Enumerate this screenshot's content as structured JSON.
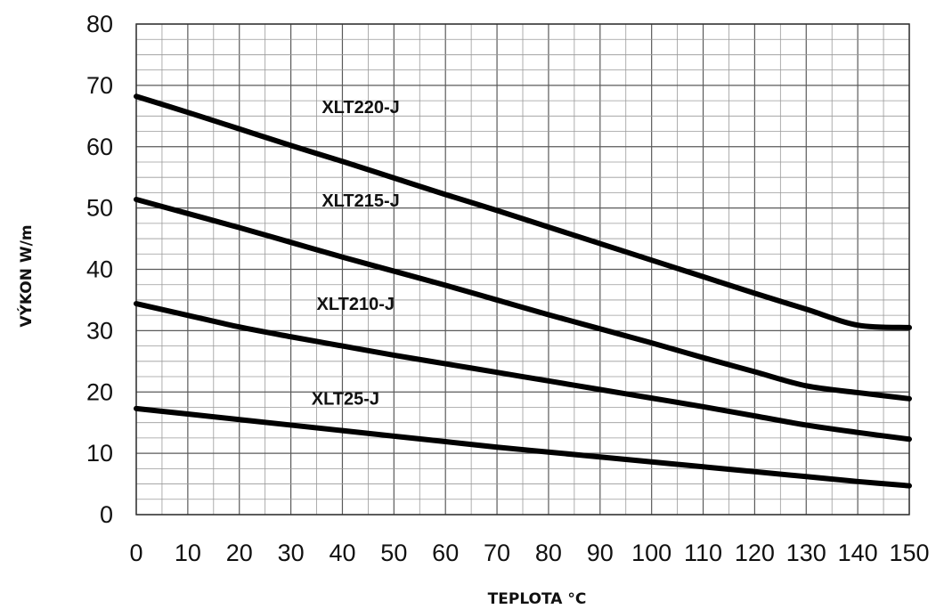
{
  "chart_data": {
    "type": "line",
    "title": "",
    "xlabel": "TEPLOTA °C",
    "ylabel": "VÝKON W/m",
    "xlim": [
      0,
      150
    ],
    "ylim": [
      0,
      80
    ],
    "x_ticks": [
      "0",
      "10",
      "20",
      "30",
      "40",
      "50",
      "60",
      "70",
      "80",
      "90",
      "100",
      "110",
      "120",
      "130",
      "140",
      "150"
    ],
    "y_ticks": [
      "0",
      "10",
      "20",
      "30",
      "40",
      "50",
      "60",
      "70",
      "80"
    ],
    "grid": true,
    "legend": "inline labels above lines",
    "series": [
      {
        "name": "XLT220-J",
        "x": [
          0,
          10,
          20,
          30,
          40,
          50,
          60,
          70,
          80,
          90,
          100,
          110,
          120,
          130,
          140,
          150
        ],
        "y": [
          68.2,
          65.6,
          62.9,
          60.2,
          57.6,
          54.9,
          52.2,
          49.6,
          46.9,
          44.2,
          41.5,
          38.8,
          36.1,
          33.5,
          30.9,
          30.5
        ]
      },
      {
        "name": "XLT215-J",
        "x": [
          0,
          10,
          20,
          30,
          40,
          50,
          60,
          70,
          80,
          90,
          100,
          110,
          120,
          130,
          140,
          150
        ],
        "y": [
          51.4,
          49.1,
          46.8,
          44.4,
          42.0,
          39.7,
          37.4,
          35.0,
          32.6,
          30.3,
          28.0,
          25.6,
          23.3,
          21.0,
          19.9,
          18.9
        ]
      },
      {
        "name": "XLT210-J",
        "x": [
          0,
          10,
          20,
          30,
          40,
          50,
          60,
          70,
          80,
          90,
          100,
          110,
          120,
          130,
          140,
          150
        ],
        "y": [
          34.4,
          32.5,
          30.6,
          29.0,
          27.5,
          26.0,
          24.6,
          23.2,
          21.8,
          20.4,
          19.0,
          17.6,
          16.1,
          14.6,
          13.4,
          12.3
        ]
      },
      {
        "name": "XLT25-J",
        "x": [
          0,
          10,
          20,
          30,
          40,
          50,
          60,
          70,
          80,
          90,
          100,
          110,
          120,
          130,
          140,
          150
        ],
        "y": [
          17.3,
          16.4,
          15.5,
          14.6,
          13.7,
          12.8,
          11.9,
          11.0,
          10.2,
          9.4,
          8.6,
          7.8,
          7.0,
          6.2,
          5.4,
          4.7
        ]
      }
    ],
    "label_positions": [
      {
        "name": "XLT220-J",
        "x": 36,
        "y": 65.5
      },
      {
        "name": "XLT215-J",
        "x": 36,
        "y": 50.2
      },
      {
        "name": "XLT210-J",
        "x": 35,
        "y": 33.4
      },
      {
        "name": "XLT25-J",
        "x": 34,
        "y": 17.9
      }
    ]
  }
}
